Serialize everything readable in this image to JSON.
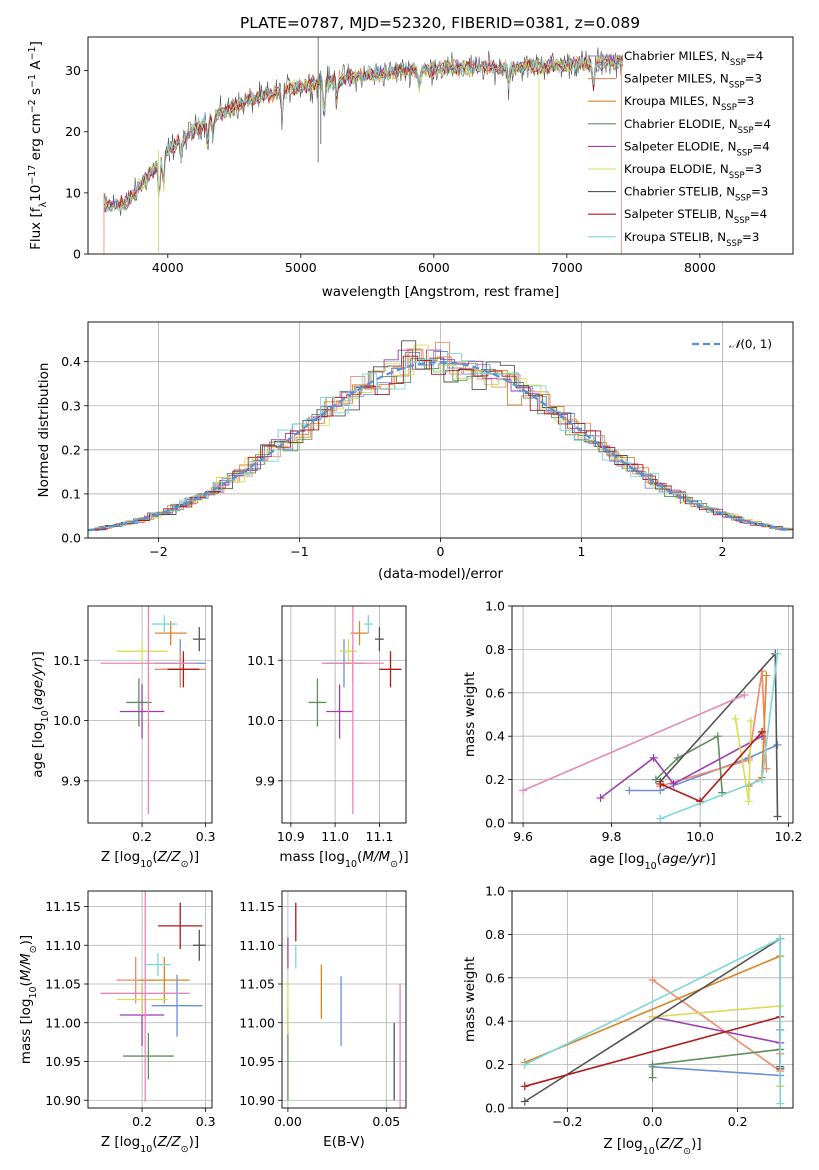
{
  "title": "PLATE=0787, MJD=52320, FIBERID=0381, z=0.089",
  "colors": {
    "chabrier_miles": "#6b8fd8",
    "salpeter_miles": "#f08a6a",
    "kroupa_miles": "#d9862a",
    "chabrier_elodie": "#5f8f5f",
    "salpeter_elodie": "#9b3fb0",
    "kroupa_elodie": "#d8dd55",
    "chabrier_stelib": "#555555",
    "salpeter_stelib": "#b01a1a",
    "kroupa_stelib": "#7dd6d8",
    "pink": "#e687b8",
    "gaussian": "#5b8fd6",
    "grid": "#b0b0b0"
  },
  "chart_data": [
    {
      "id": "spectrum",
      "type": "line",
      "xlabel": "wavelength [Angstrom, rest frame]",
      "ylabel": "Flux [fλ10⁻¹⁷ erg cm⁻² s⁻¹ A⁻¹]",
      "xlim": [
        3400,
        8700
      ],
      "ylim": [
        0,
        35.5
      ],
      "xticks": [
        "4000",
        "5000",
        "6000",
        "7000",
        "8000"
      ],
      "yticks": [
        "0",
        "10",
        "20",
        "30"
      ],
      "grid": false,
      "legend_position": "right",
      "x_range_data": [
        3520,
        7420
      ],
      "continuum": {
        "x": [
          3520,
          3700,
          4000,
          4300,
          4600,
          5000,
          5400,
          5800,
          6200,
          6600,
          7000,
          7400
        ],
        "y": [
          8,
          8.5,
          17,
          22,
          25,
          27.5,
          29,
          30,
          30.5,
          30.5,
          31,
          31.5
        ]
      },
      "series": [
        {
          "name": "Chabrier MILES, N",
          "sub": "SSP",
          "suffix": "=4"
        },
        {
          "name": "Salpeter MILES, N",
          "sub": "SSP",
          "suffix": "=3"
        },
        {
          "name": "Kroupa MILES, N",
          "sub": "SSP",
          "suffix": "=3"
        },
        {
          "name": "Chabrier ELODIE, N",
          "sub": "SSP",
          "suffix": "=4"
        },
        {
          "name": "Salpeter ELODIE, N",
          "sub": "SSP",
          "suffix": "=4"
        },
        {
          "name": "Kroupa ELODIE, N",
          "sub": "SSP",
          "suffix": "=3"
        },
        {
          "name": "Chabrier STELIB, N",
          "sub": "SSP",
          "suffix": "=3"
        },
        {
          "name": "Salpeter STELIB, N",
          "sub": "SSP",
          "suffix": "=4"
        },
        {
          "name": "Kroupa STELIB, N",
          "sub": "SSP",
          "suffix": "=3"
        }
      ]
    },
    {
      "id": "residuals",
      "type": "line",
      "xlabel": "(data-model)/error",
      "ylabel": "Normed distribution",
      "xlim": [
        -2.5,
        2.5
      ],
      "ylim": [
        0,
        0.49
      ],
      "xticks": [
        "−2",
        "−1",
        "0",
        "1",
        "2"
      ],
      "yticks": [
        "0.0",
        "0.1",
        "0.2",
        "0.3",
        "0.4"
      ],
      "grid": true,
      "legend": "𝒩(0, 1)",
      "legend_position": "top-right",
      "bin_width": 0.1
    },
    {
      "id": "age_vs_Z",
      "type": "scatter",
      "xlabel": "Z [log₁₀(Z/Z⊙)]",
      "ylabel": "age  [log₁₀(age/yr)]",
      "xlim": [
        0.115,
        0.31
      ],
      "ylim": [
        9.83,
        10.19
      ],
      "xticks": [
        "0.2",
        "0.3"
      ],
      "yticks": [
        "9.9",
        "10.0",
        "10.1"
      ],
      "grid": true,
      "points": [
        {
          "c": "chabrier_miles",
          "x": 0.26,
          "y": 10.095,
          "ex": 0.04,
          "ey": 0.04
        },
        {
          "c": "salpeter_miles",
          "x": 0.26,
          "y": 10.085,
          "ex": 0.04,
          "ey": 0.03
        },
        {
          "c": "kroupa_miles",
          "x": 0.245,
          "y": 10.145,
          "ex": 0.025,
          "ey": 0.02
        },
        {
          "c": "chabrier_elodie",
          "x": 0.195,
          "y": 10.03,
          "ex": 0.02,
          "ey": 0.04
        },
        {
          "c": "salpeter_elodie",
          "x": 0.2,
          "y": 10.015,
          "ex": 0.035,
          "ey": 0.045
        },
        {
          "c": "kroupa_elodie",
          "x": 0.2,
          "y": 10.115,
          "ex": 0.04,
          "ey": 0.02
        },
        {
          "c": "chabrier_stelib",
          "x": 0.29,
          "y": 10.135,
          "ex": 0.01,
          "ey": 0.02
        },
        {
          "c": "salpeter_stelib",
          "x": 0.265,
          "y": 10.085,
          "ex": 0.025,
          "ey": 0.03
        },
        {
          "c": "kroupa_stelib",
          "x": 0.235,
          "y": 10.16,
          "ex": 0.02,
          "ey": 0.015
        },
        {
          "c": "pink",
          "x": 0.21,
          "y": 10.095,
          "ex": 0.075,
          "ey": 0.25
        }
      ]
    },
    {
      "id": "age_vs_mass",
      "type": "scatter",
      "xlabel": "mass [log₁₀(M/M⊙)]",
      "ylabel": "",
      "xlim": [
        10.88,
        11.16
      ],
      "ylim": [
        9.83,
        10.19
      ],
      "xticks": [
        "10.9",
        "11.0",
        "11.1"
      ],
      "yticks": [
        "9.9",
        "10.0",
        "10.1"
      ],
      "grid": true,
      "points": [
        {
          "c": "chabrier_miles",
          "x": 11.02,
          "y": 10.095,
          "ex": 0.04,
          "ey": 0.04
        },
        {
          "c": "salpeter_miles",
          "x": 11.04,
          "y": 10.095,
          "ex": 0.03,
          "ey": 0.03
        },
        {
          "c": "kroupa_miles",
          "x": 11.055,
          "y": 10.145,
          "ex": 0.02,
          "ey": 0.02
        },
        {
          "c": "chabrier_elodie",
          "x": 10.96,
          "y": 10.03,
          "ex": 0.02,
          "ey": 0.04
        },
        {
          "c": "salpeter_elodie",
          "x": 11.01,
          "y": 10.015,
          "ex": 0.03,
          "ey": 0.045
        },
        {
          "c": "kroupa_elodie",
          "x": 11.03,
          "y": 10.115,
          "ex": 0.02,
          "ey": 0.02
        },
        {
          "c": "chabrier_stelib",
          "x": 11.1,
          "y": 10.135,
          "ex": 0.01,
          "ey": 0.02
        },
        {
          "c": "salpeter_stelib",
          "x": 11.125,
          "y": 10.085,
          "ex": 0.025,
          "ey": 0.03
        },
        {
          "c": "kroupa_stelib",
          "x": 11.075,
          "y": 10.16,
          "ex": 0.01,
          "ey": 0.015
        },
        {
          "c": "pink",
          "x": 11.04,
          "y": 10.095,
          "ex": 0.07,
          "ey": 0.25
        }
      ]
    },
    {
      "id": "weight_vs_age",
      "type": "line",
      "xlabel": "age  [log₁₀(age/yr)]",
      "ylabel": "mass weight",
      "xlim": [
        9.575,
        10.21
      ],
      "ylim": [
        0,
        1
      ],
      "xticks": [
        "9.6",
        "9.8",
        "10.0",
        "10.2"
      ],
      "yticks": [
        "0.0",
        "0.2",
        "0.4",
        "0.6",
        "0.8",
        "1.0"
      ],
      "grid": true,
      "series": [
        {
          "c": "chabrier_miles",
          "x": [
            9.84,
            9.91,
            10.11,
            10.175
          ],
          "y": [
            0.15,
            0.15,
            0.3,
            0.36
          ]
        },
        {
          "c": "salpeter_miles",
          "x": [
            9.91,
            10.11,
            10.14,
            10.15
          ],
          "y": [
            0.17,
            0.29,
            0.7,
            0.25
          ]
        },
        {
          "c": "kroupa_miles",
          "x": [
            10.11,
            10.14,
            10.15
          ],
          "y": [
            0.17,
            0.21,
            0.68
          ]
        },
        {
          "c": "chabrier_elodie",
          "x": [
            9.9,
            9.95,
            10.04,
            10.05
          ],
          "y": [
            0.2,
            0.3,
            0.4,
            0.14
          ]
        },
        {
          "c": "salpeter_elodie",
          "x": [
            9.775,
            9.895,
            9.94,
            10.14
          ],
          "y": [
            0.115,
            0.3,
            0.18,
            0.4
          ]
        },
        {
          "c": "kroupa_elodie",
          "x": [
            10.08,
            10.11,
            10.115
          ],
          "y": [
            0.48,
            0.1,
            0.47
          ]
        },
        {
          "c": "chabrier_stelib",
          "x": [
            9.91,
            10.17,
            10.175
          ],
          "y": [
            0.19,
            0.78,
            0.03
          ]
        },
        {
          "c": "salpeter_stelib",
          "x": [
            9.91,
            10.0,
            10.14
          ],
          "y": [
            0.18,
            0.1,
            0.42
          ]
        },
        {
          "c": "kroupa_stelib",
          "x": [
            9.91,
            10.14,
            10.175
          ],
          "y": [
            0.02,
            0.2,
            0.78
          ]
        },
        {
          "c": "pink",
          "x": [
            9.6,
            10.1
          ],
          "y": [
            0.15,
            0.59
          ]
        }
      ]
    },
    {
      "id": "mass_vs_Z",
      "type": "scatter",
      "xlabel": "Z [log₁₀(Z/Z⊙)]",
      "ylabel": "mass [log₁₀(M/M⊙)]",
      "xlim": [
        0.115,
        0.31
      ],
      "ylim": [
        10.89,
        11.17
      ],
      "xticks": [
        "0.2",
        "0.3"
      ],
      "yticks": [
        "10.90",
        "10.95",
        "11.00",
        "11.05",
        "11.10",
        "11.15"
      ],
      "grid": true,
      "points": [
        {
          "c": "chabrier_miles",
          "x": 0.255,
          "y": 11.022,
          "ex": 0.04,
          "ey": 0.04
        },
        {
          "c": "salpeter_miles",
          "x": 0.19,
          "y": 11.055,
          "ex": 0.03,
          "ey": 0.03
        },
        {
          "c": "kroupa_miles",
          "x": 0.235,
          "y": 11.055,
          "ex": 0.04,
          "ey": 0.03
        },
        {
          "c": "chabrier_elodie",
          "x": 0.21,
          "y": 10.957,
          "ex": 0.04,
          "ey": 0.03
        },
        {
          "c": "salpeter_elodie",
          "x": 0.2,
          "y": 11.01,
          "ex": 0.035,
          "ey": 0.04
        },
        {
          "c": "kroupa_elodie",
          "x": 0.2,
          "y": 11.03,
          "ex": 0.04,
          "ey": 0.02
        },
        {
          "c": "chabrier_stelib",
          "x": 0.29,
          "y": 11.1,
          "ex": 0.01,
          "ey": 0.02
        },
        {
          "c": "salpeter_stelib",
          "x": 0.26,
          "y": 11.125,
          "ex": 0.035,
          "ey": 0.03
        },
        {
          "c": "kroupa_stelib",
          "x": 0.225,
          "y": 11.075,
          "ex": 0.02,
          "ey": 0.015
        },
        {
          "c": "pink",
          "x": 0.205,
          "y": 11.038,
          "ex": 0.07,
          "ey": 0.14
        }
      ]
    },
    {
      "id": "mass_vs_ebv",
      "type": "scatter",
      "xlabel": "E(B-V)",
      "ylabel": "",
      "xlim": [
        -0.003,
        0.06
      ],
      "ylim": [
        10.89,
        11.17
      ],
      "xticks": [
        "0.00",
        "0.05"
      ],
      "yticks": [
        "10.90",
        "10.95",
        "11.00",
        "11.05",
        "11.10",
        "11.15"
      ],
      "grid": true,
      "points": [
        {
          "c": "chabrier_miles",
          "x": 0.027,
          "y": 11.015,
          "ex": 0,
          "ey": 0.045
        },
        {
          "c": "kroupa_miles",
          "x": 0.017,
          "y": 11.04,
          "ex": 0,
          "ey": 0.035
        },
        {
          "c": "chabrier_elodie",
          "x": 0.0,
          "y": 10.96,
          "ex": 0,
          "ey": 0.06
        },
        {
          "c": "salpeter_elodie",
          "x": 0.0,
          "y": 11.09,
          "ex": 0,
          "ey": 0.02
        },
        {
          "c": "kroupa_elodie",
          "x": 0.0,
          "y": 11.02,
          "ex": 0,
          "ey": 0.035
        },
        {
          "c": "salpeter_stelib",
          "x": 0.004,
          "y": 11.13,
          "ex": 0,
          "ey": 0.025
        },
        {
          "c": "kroupa_stelib",
          "x": 0.004,
          "y": 11.085,
          "ex": 0,
          "ey": 0.015
        },
        {
          "c": "pink",
          "x": 0.057,
          "y": 10.97,
          "ex": 0,
          "ey": 0.08
        },
        {
          "c": "chabrier_stelib",
          "x": 0.054,
          "y": 10.95,
          "ex": 0,
          "ey": 0.05
        }
      ]
    },
    {
      "id": "weight_vs_Z",
      "type": "line",
      "xlabel": "Z [log₁₀(Z/Z⊙)]",
      "ylabel": "mass weight",
      "xlim": [
        -0.33,
        0.33
      ],
      "ylim": [
        0,
        1
      ],
      "xticks": [
        "−0.2",
        "0.0",
        "0.2"
      ],
      "yticks": [
        "0.0",
        "0.2",
        "0.4",
        "0.6",
        "0.8",
        "1.0"
      ],
      "grid": true,
      "series": [
        {
          "c": "chabrier_miles",
          "x": [
            0.0,
            0.3,
            0.3
          ],
          "y": [
            0.19,
            0.15,
            0.36
          ]
        },
        {
          "c": "salpeter_miles",
          "x": [
            0.0,
            0.3,
            0.3
          ],
          "y": [
            0.59,
            0.17,
            0.25
          ]
        },
        {
          "c": "kroupa_miles",
          "x": [
            -0.3,
            0.3,
            0.3
          ],
          "y": [
            0.21,
            0.7,
            0.1
          ]
        },
        {
          "c": "chabrier_elodie",
          "x": [
            0.0,
            0.0,
            0.3
          ],
          "y": [
            0.14,
            0.2,
            0.27
          ]
        },
        {
          "c": "salpeter_elodie",
          "x": [
            0.0,
            0.3,
            0.3
          ],
          "y": [
            0.42,
            0.3,
            0.18
          ]
        },
        {
          "c": "kroupa_elodie",
          "x": [
            0.0,
            0.3,
            0.3
          ],
          "y": [
            0.42,
            0.47,
            0.1
          ]
        },
        {
          "c": "chabrier_stelib",
          "x": [
            -0.3,
            0.3,
            0.3
          ],
          "y": [
            0.03,
            0.78,
            0.19
          ]
        },
        {
          "c": "salpeter_stelib",
          "x": [
            -0.3,
            0.3,
            0.3
          ],
          "y": [
            0.1,
            0.42,
            0.18
          ]
        },
        {
          "c": "kroupa_stelib",
          "x": [
            -0.3,
            0.3,
            0.3
          ],
          "y": [
            0.2,
            0.78,
            0.02
          ]
        }
      ]
    }
  ]
}
